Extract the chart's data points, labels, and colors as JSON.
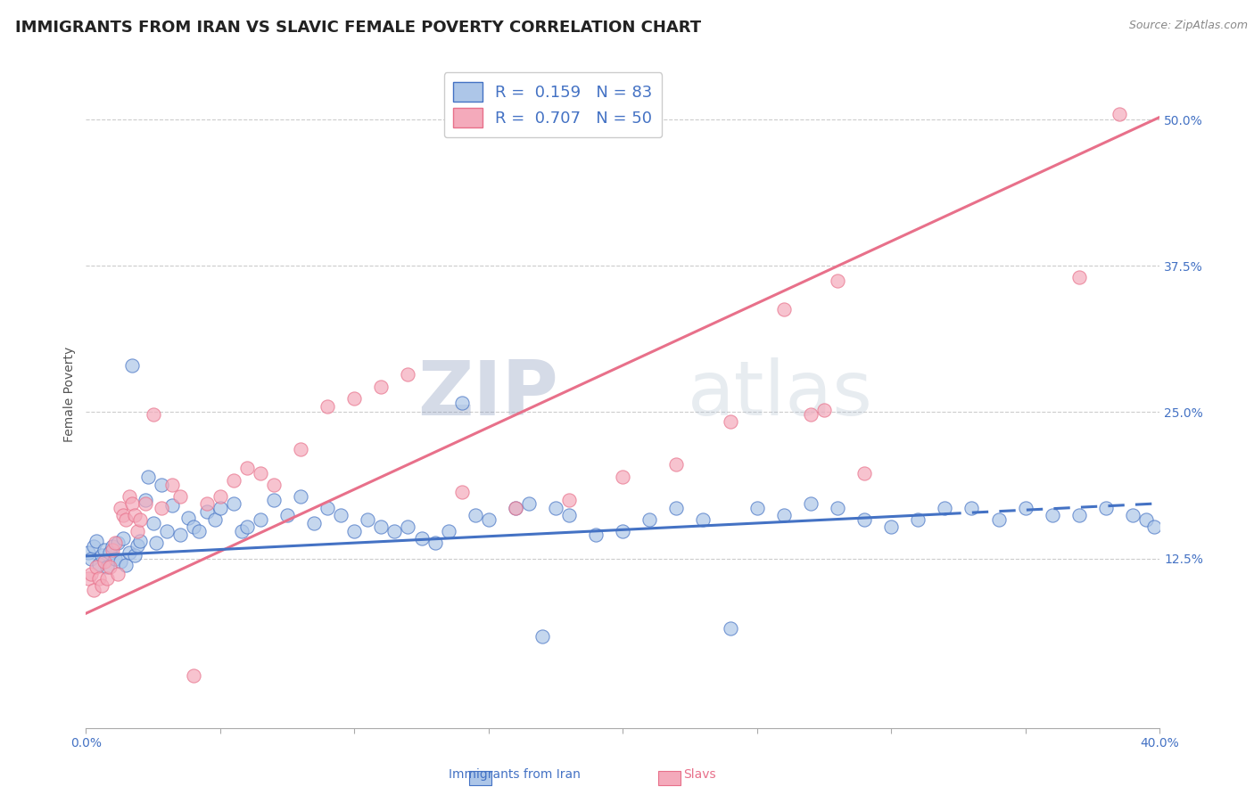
{
  "title": "IMMIGRANTS FROM IRAN VS SLAVIC FEMALE POVERTY CORRELATION CHART",
  "source_text": "Source: ZipAtlas.com",
  "ylabel": "Female Poverty",
  "xlim": [
    0.0,
    0.4
  ],
  "ylim": [
    -0.02,
    0.55
  ],
  "yticks_right": [
    0.125,
    0.25,
    0.375,
    0.5
  ],
  "yticklabels_right": [
    "12.5%",
    "25.0%",
    "37.5%",
    "50.0%"
  ],
  "color_iran": "#adc6e8",
  "color_slavs": "#f4aabb",
  "color_iran_line": "#4472c4",
  "color_slavs_line": "#e8708a",
  "watermark_zip": "ZIP",
  "watermark_atlas": "atlas",
  "iran_trend_x": [
    0.0,
    0.4
  ],
  "iran_trend_y": [
    0.127,
    0.172
  ],
  "iran_trend_dash_start": 0.32,
  "slavs_trend_x": [
    0.0,
    0.4
  ],
  "slavs_trend_y": [
    0.078,
    0.502
  ],
  "background_color": "#ffffff",
  "grid_color": "#cccccc",
  "title_fontsize": 13,
  "axis_label_fontsize": 10,
  "tick_fontsize": 10,
  "legend_fontsize": 13,
  "iran_scatter_x": [
    0.001,
    0.002,
    0.003,
    0.004,
    0.005,
    0.006,
    0.007,
    0.008,
    0.009,
    0.01,
    0.011,
    0.012,
    0.013,
    0.014,
    0.015,
    0.016,
    0.017,
    0.018,
    0.019,
    0.02,
    0.022,
    0.023,
    0.025,
    0.026,
    0.028,
    0.03,
    0.032,
    0.035,
    0.038,
    0.04,
    0.042,
    0.045,
    0.048,
    0.05,
    0.055,
    0.058,
    0.06,
    0.065,
    0.07,
    0.075,
    0.08,
    0.085,
    0.09,
    0.095,
    0.1,
    0.105,
    0.11,
    0.115,
    0.12,
    0.125,
    0.13,
    0.135,
    0.14,
    0.145,
    0.15,
    0.16,
    0.165,
    0.17,
    0.175,
    0.18,
    0.19,
    0.2,
    0.21,
    0.22,
    0.23,
    0.24,
    0.25,
    0.26,
    0.27,
    0.28,
    0.29,
    0.3,
    0.31,
    0.32,
    0.33,
    0.34,
    0.35,
    0.36,
    0.37,
    0.38,
    0.39,
    0.395,
    0.398
  ],
  "iran_scatter_y": [
    0.13,
    0.125,
    0.135,
    0.14,
    0.12,
    0.128,
    0.132,
    0.118,
    0.13,
    0.135,
    0.125,
    0.138,
    0.122,
    0.142,
    0.119,
    0.13,
    0.29,
    0.128,
    0.136,
    0.14,
    0.175,
    0.195,
    0.155,
    0.138,
    0.188,
    0.148,
    0.17,
    0.145,
    0.16,
    0.152,
    0.148,
    0.165,
    0.158,
    0.168,
    0.172,
    0.148,
    0.152,
    0.158,
    0.175,
    0.162,
    0.178,
    0.155,
    0.168,
    0.162,
    0.148,
    0.158,
    0.152,
    0.148,
    0.152,
    0.142,
    0.138,
    0.148,
    0.258,
    0.162,
    0.158,
    0.168,
    0.172,
    0.058,
    0.168,
    0.162,
    0.145,
    0.148,
    0.158,
    0.168,
    0.158,
    0.065,
    0.168,
    0.162,
    0.172,
    0.168,
    0.158,
    0.152,
    0.158,
    0.168,
    0.168,
    0.158,
    0.168,
    0.162,
    0.162,
    0.168,
    0.162,
    0.158,
    0.152
  ],
  "slavs_scatter_x": [
    0.001,
    0.002,
    0.003,
    0.004,
    0.005,
    0.006,
    0.007,
    0.008,
    0.009,
    0.01,
    0.011,
    0.012,
    0.013,
    0.014,
    0.015,
    0.016,
    0.017,
    0.018,
    0.019,
    0.02,
    0.022,
    0.025,
    0.028,
    0.032,
    0.035,
    0.04,
    0.045,
    0.05,
    0.055,
    0.06,
    0.065,
    0.07,
    0.08,
    0.09,
    0.1,
    0.11,
    0.12,
    0.14,
    0.16,
    0.18,
    0.2,
    0.22,
    0.24,
    0.26,
    0.27,
    0.275,
    0.28,
    0.29,
    0.37,
    0.385
  ],
  "slavs_scatter_y": [
    0.108,
    0.112,
    0.098,
    0.118,
    0.108,
    0.102,
    0.122,
    0.108,
    0.118,
    0.132,
    0.138,
    0.112,
    0.168,
    0.162,
    0.158,
    0.178,
    0.172,
    0.162,
    0.148,
    0.158,
    0.172,
    0.248,
    0.168,
    0.188,
    0.178,
    0.025,
    0.172,
    0.178,
    0.192,
    0.202,
    0.198,
    0.188,
    0.218,
    0.255,
    0.262,
    0.272,
    0.282,
    0.182,
    0.168,
    0.175,
    0.195,
    0.205,
    0.242,
    0.338,
    0.248,
    0.252,
    0.362,
    0.198,
    0.365,
    0.505
  ]
}
